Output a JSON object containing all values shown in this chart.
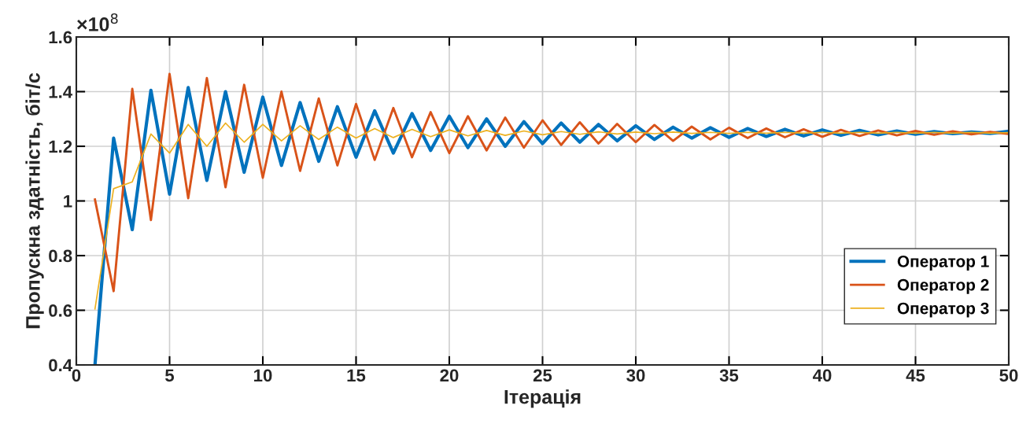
{
  "chart_data": {
    "type": "line",
    "xlabel": "Ітерація",
    "ylabel": "Пропускна здатність, біт/с",
    "annotations": [
      "×10$^{8}$"
    ],
    "x": [
      1,
      2,
      3,
      4,
      5,
      6,
      7,
      8,
      9,
      10,
      11,
      12,
      13,
      14,
      15,
      16,
      17,
      18,
      19,
      20,
      21,
      22,
      23,
      24,
      25,
      26,
      27,
      28,
      29,
      30,
      31,
      32,
      33,
      34,
      35,
      36,
      37,
      38,
      39,
      40,
      41,
      42,
      43,
      44,
      45,
      46,
      47,
      48,
      49,
      50
    ],
    "series": [
      {
        "name": "Оператор 1",
        "color": "#0072bd",
        "values": [
          0.4,
          1.23,
          0.895,
          1.405,
          1.025,
          1.415,
          1.075,
          1.4,
          1.105,
          1.38,
          1.13,
          1.36,
          1.145,
          1.345,
          1.16,
          1.33,
          1.175,
          1.32,
          1.185,
          1.31,
          1.195,
          1.3,
          1.2,
          1.29,
          1.21,
          1.285,
          1.215,
          1.28,
          1.22,
          1.275,
          1.225,
          1.27,
          1.23,
          1.268,
          1.233,
          1.265,
          1.236,
          1.262,
          1.238,
          1.26,
          1.24,
          1.258,
          1.242,
          1.256,
          1.244,
          1.254,
          1.246,
          1.252,
          1.247,
          1.255
        ]
      },
      {
        "name": "Оператор 2",
        "color": "#d95319",
        "values": [
          1.005,
          0.67,
          1.41,
          0.93,
          1.465,
          1.01,
          1.45,
          1.05,
          1.425,
          1.085,
          1.4,
          1.11,
          1.375,
          1.13,
          1.355,
          1.15,
          1.34,
          1.16,
          1.325,
          1.175,
          1.31,
          1.185,
          1.305,
          1.195,
          1.295,
          1.205,
          1.288,
          1.21,
          1.282,
          1.215,
          1.278,
          1.22,
          1.272,
          1.225,
          1.268,
          1.23,
          1.265,
          1.233,
          1.262,
          1.235,
          1.26,
          1.238,
          1.258,
          1.24,
          1.256,
          1.242,
          1.255,
          1.244,
          1.253,
          1.245
        ]
      },
      {
        "name": "Оператор 3",
        "color": "#edb120",
        "values": [
          0.605,
          1.045,
          1.07,
          1.245,
          1.175,
          1.28,
          1.2,
          1.285,
          1.215,
          1.28,
          1.22,
          1.275,
          1.225,
          1.27,
          1.23,
          1.265,
          1.232,
          1.262,
          1.235,
          1.26,
          1.238,
          1.258,
          1.24,
          1.256,
          1.242,
          1.254,
          1.244,
          1.253,
          1.245,
          1.252,
          1.246,
          1.252,
          1.247,
          1.251,
          1.247,
          1.251,
          1.248,
          1.251,
          1.248,
          1.251,
          1.248,
          1.251,
          1.248,
          1.251,
          1.248,
          1.251,
          1.248,
          1.251,
          1.248,
          1.25
        ]
      }
    ],
    "xlim": [
      0,
      50
    ],
    "xticks": [
      0,
      5,
      10,
      15,
      20,
      25,
      30,
      35,
      40,
      45,
      50
    ],
    "ylim": [
      0.4,
      1.6
    ],
    "yticks": [
      {
        "value": 0.4,
        "label": "0.4"
      },
      {
        "value": 0.6,
        "label": "0.6"
      },
      {
        "value": 0.8,
        "label": "0.8"
      },
      {
        "value": 1,
        "label": "1"
      },
      {
        "value": 1.2,
        "label": "1.2"
      },
      {
        "value": 1.4,
        "label": "1.4"
      },
      {
        "value": 1.6,
        "label": "1.6"
      }
    ],
    "grid": true,
    "legend": "bottom right",
    "marker": "none",
    "line_style": "solid"
  }
}
